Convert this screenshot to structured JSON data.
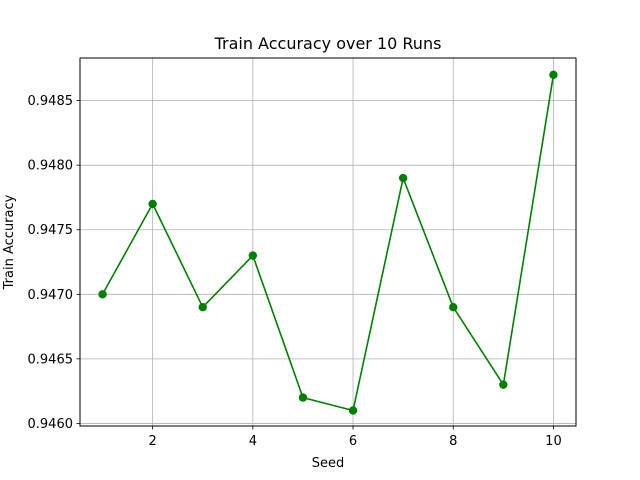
{
  "chart_data": {
    "type": "line",
    "title": "Train Accuracy over 10 Runs",
    "xlabel": "Seed",
    "ylabel": "Train Accuracy",
    "xlim": [
      0.55,
      10.45
    ],
    "ylim": [
      0.94598,
      0.94883
    ],
    "xticks": [
      2,
      4,
      6,
      8,
      10
    ],
    "xtick_labels": [
      "2",
      "4",
      "6",
      "8",
      "10"
    ],
    "yticks": [
      0.946,
      0.9465,
      0.947,
      0.9475,
      0.948,
      0.9485
    ],
    "ytick_labels": [
      "0.9460",
      "0.9465",
      "0.9470",
      "0.9475",
      "0.9480",
      "0.9485"
    ],
    "grid": true,
    "series": [
      {
        "color": "#008000",
        "marker": "circle",
        "x": [
          1,
          2,
          3,
          4,
          5,
          6,
          7,
          8,
          9,
          10
        ],
        "y": [
          0.947,
          0.9477,
          0.9469,
          0.9473,
          0.9462,
          0.9461,
          0.9479,
          0.9469,
          0.9463,
          0.9487
        ]
      }
    ]
  }
}
